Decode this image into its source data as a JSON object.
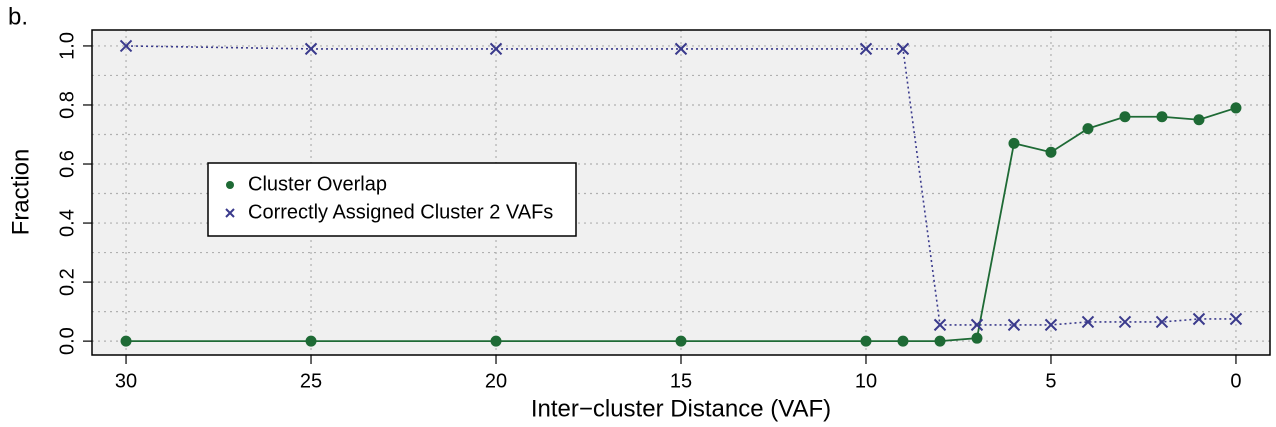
{
  "chart_data": {
    "type": "line",
    "panel_label": "b.",
    "x_label": "Inter−cluster Distance (VAF)",
    "y_label": "Fraction",
    "x": [
      30,
      25,
      20,
      15,
      10,
      9,
      8,
      7,
      6,
      5,
      4,
      3,
      2,
      1,
      0
    ],
    "series": [
      {
        "name": "Cluster Overlap",
        "color": "#1e6a35",
        "marker": "circle",
        "line": "solid",
        "values": [
          0,
          0,
          0,
          0,
          0,
          0,
          0,
          0.01,
          0.67,
          0.64,
          0.72,
          0.76,
          0.76,
          0.75,
          0.79
        ]
      },
      {
        "name": "Correctly Assigned Cluster 2 VAFs",
        "color": "#3a3a8c",
        "marker": "x",
        "line": "dotted",
        "values": [
          1.0,
          0.99,
          0.99,
          0.99,
          0.99,
          0.99,
          0.055,
          0.055,
          0.055,
          0.055,
          0.065,
          0.065,
          0.065,
          0.075,
          0.075
        ]
      }
    ],
    "xlim": [
      30.92,
      -0.92
    ],
    "ylim": [
      -0.047,
      1.054
    ],
    "xticks": [
      30,
      25,
      20,
      15,
      10,
      5,
      0
    ],
    "yticks": [
      {
        "value": 0,
        "label": "0.0"
      },
      0.2,
      0.4,
      0.6,
      0.8,
      {
        "value": 1,
        "label": "1.0"
      }
    ],
    "y_grid": [
      0,
      0.1,
      0.2,
      0.3,
      0.4,
      0.5,
      0.6,
      0.7,
      0.8,
      0.9,
      1
    ],
    "x_grid": [
      30,
      25,
      20,
      15,
      10,
      5,
      0
    ],
    "background": "#f0f0f0",
    "legend": "center-left"
  }
}
